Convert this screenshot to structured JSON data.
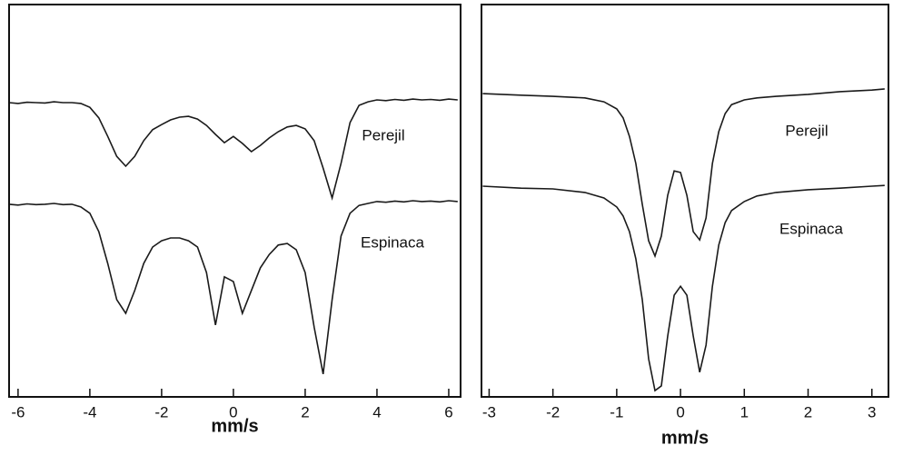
{
  "chart_data": [
    {
      "type": "line",
      "xlabel": "mm/s",
      "x": [
        -6.25,
        -6,
        -5.75,
        -5.5,
        -5.25,
        -5,
        -4.75,
        -4.5,
        -4.25,
        -4,
        -3.75,
        -3.5,
        -3.25,
        -3,
        -2.75,
        -2.5,
        -2.25,
        -2,
        -1.75,
        -1.5,
        -1.25,
        -1,
        -0.75,
        -0.5,
        -0.25,
        0,
        0.25,
        0.5,
        0.75,
        1,
        1.25,
        1.5,
        1.75,
        2,
        2.25,
        2.5,
        2.75,
        3,
        3.25,
        3.5,
        3.75,
        4,
        4.25,
        4.5,
        4.75,
        5,
        5.25,
        5.5,
        5.75,
        6,
        6.25
      ],
      "xlim": [
        -6.25,
        6.33
      ],
      "ylim": [
        0,
        100
      ],
      "xticks": [
        -6,
        -4,
        -2,
        0,
        2,
        4,
        6
      ],
      "series": [
        {
          "name": "Perejil",
          "color": "#1a1a1a",
          "values": [
            75.0,
            74.8,
            75.1,
            75.0,
            74.9,
            75.2,
            75.0,
            75.0,
            74.8,
            73.8,
            71.1,
            66.4,
            61.3,
            58.8,
            61.3,
            65.3,
            68.1,
            69.4,
            70.6,
            71.3,
            71.5,
            70.8,
            69.2,
            66.9,
            64.8,
            66.4,
            64.6,
            62.5,
            64.1,
            66.0,
            67.6,
            68.8,
            69.2,
            68.3,
            65.3,
            58.3,
            50.7,
            59.5,
            69.9,
            74.3,
            75.2,
            75.7,
            75.5,
            75.8,
            75.6,
            75.9,
            75.7,
            75.8,
            75.6,
            75.9,
            75.7
          ]
        },
        {
          "name": "Espinaca",
          "color": "#1a1a1a",
          "values": [
            49.1,
            48.9,
            49.2,
            49.0,
            49.1,
            49.3,
            49.0,
            49.1,
            48.4,
            46.8,
            42.1,
            34.0,
            24.8,
            21.3,
            27.1,
            34.0,
            38.2,
            39.8,
            40.5,
            40.5,
            39.8,
            38.2,
            31.7,
            18.3,
            30.6,
            29.4,
            21.3,
            27.1,
            32.9,
            36.3,
            38.7,
            39.1,
            37.5,
            31.7,
            17.8,
            5.8,
            24.8,
            41.0,
            46.8,
            48.8,
            49.3,
            49.8,
            49.6,
            49.9,
            49.7,
            50.0,
            49.8,
            49.9,
            49.7,
            50.0,
            49.8
          ]
        }
      ]
    },
    {
      "type": "line",
      "xlabel": "mm/s",
      "x": [
        -3.1,
        -2.5,
        -2,
        -1.5,
        -1.2,
        -1,
        -0.9,
        -0.8,
        -0.7,
        -0.6,
        -0.5,
        -0.4,
        -0.3,
        -0.2,
        -0.1,
        0,
        0.1,
        0.2,
        0.3,
        0.4,
        0.5,
        0.6,
        0.7,
        0.8,
        1,
        1.2,
        1.5,
        2,
        2.5,
        3,
        3.2
      ],
      "xlim": [
        -3.12,
        3.26
      ],
      "ylim": [
        0,
        100
      ],
      "xticks": [
        -3,
        -2,
        -1,
        0,
        1,
        2,
        3
      ],
      "series": [
        {
          "name": "Perejil",
          "color": "#1a1a1a",
          "values": [
            77.3,
            76.9,
            76.6,
            76.2,
            75.2,
            73.4,
            71.1,
            66.4,
            59.5,
            49.1,
            39.8,
            35.9,
            41.0,
            51.4,
            57.6,
            57.2,
            51.4,
            42.1,
            40.0,
            45.6,
            59.5,
            67.6,
            72.2,
            74.5,
            75.7,
            76.2,
            76.6,
            77.1,
            77.8,
            78.2,
            78.5
          ]
        },
        {
          "name": "Espinaca",
          "color": "#1a1a1a",
          "values": [
            53.7,
            53.2,
            53.0,
            52.1,
            50.7,
            48.4,
            46.1,
            42.1,
            35.2,
            24.8,
            9.7,
            1.6,
            2.8,
            15.5,
            25.9,
            28.2,
            25.9,
            15.5,
            6.3,
            13.2,
            28.2,
            38.7,
            44.4,
            47.5,
            49.8,
            51.2,
            52.1,
            52.8,
            53.2,
            53.7,
            53.9
          ]
        }
      ]
    }
  ]
}
